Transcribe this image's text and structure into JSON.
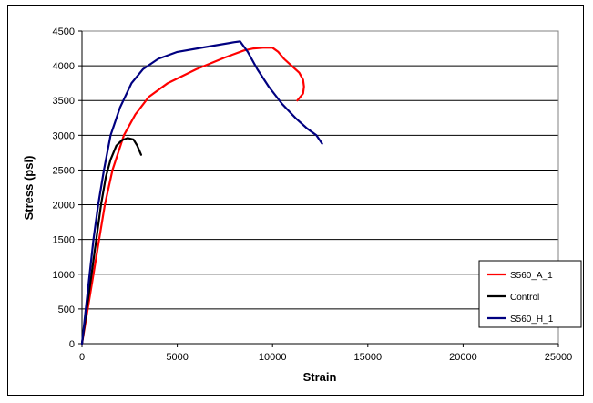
{
  "chart_data": {
    "type": "line",
    "title": "",
    "xlabel": "Strain",
    "ylabel": "Stress (psi)",
    "xlim": [
      0,
      25000
    ],
    "ylim": [
      0,
      4500
    ],
    "xticks": [
      0,
      5000,
      10000,
      15000,
      20000,
      25000
    ],
    "yticks": [
      0,
      500,
      1000,
      1500,
      2000,
      2500,
      3000,
      3500,
      4000,
      4500
    ],
    "grid": "horizontal",
    "legend_position": "right",
    "series": [
      {
        "name": "S560_A_1",
        "color": "#ff0000",
        "points": [
          [
            0,
            0
          ],
          [
            300,
            500
          ],
          [
            600,
            1000
          ],
          [
            900,
            1500
          ],
          [
            1200,
            2000
          ],
          [
            1600,
            2500
          ],
          [
            2200,
            3000
          ],
          [
            2800,
            3300
          ],
          [
            3500,
            3550
          ],
          [
            4500,
            3750
          ],
          [
            6000,
            3950
          ],
          [
            7500,
            4120
          ],
          [
            8500,
            4220
          ],
          [
            9000,
            4250
          ],
          [
            9500,
            4260
          ],
          [
            10000,
            4260
          ],
          [
            10300,
            4200
          ],
          [
            10600,
            4100
          ],
          [
            11000,
            4000
          ],
          [
            11400,
            3900
          ],
          [
            11600,
            3800
          ],
          [
            11650,
            3700
          ],
          [
            11600,
            3600
          ],
          [
            11300,
            3500
          ]
        ]
      },
      {
        "name": "Control",
        "color": "#000000",
        "points": [
          [
            0,
            0
          ],
          [
            250,
            500
          ],
          [
            500,
            1000
          ],
          [
            750,
            1500
          ],
          [
            1000,
            2000
          ],
          [
            1250,
            2400
          ],
          [
            1500,
            2650
          ],
          [
            1800,
            2850
          ],
          [
            2100,
            2930
          ],
          [
            2400,
            2960
          ],
          [
            2700,
            2940
          ],
          [
            2900,
            2850
          ],
          [
            3100,
            2720
          ]
        ]
      },
      {
        "name": "S560_H_1",
        "color": "#000080",
        "points": [
          [
            0,
            0
          ],
          [
            200,
            500
          ],
          [
            400,
            1000
          ],
          [
            600,
            1500
          ],
          [
            850,
            2000
          ],
          [
            1150,
            2500
          ],
          [
            1500,
            3000
          ],
          [
            2000,
            3400
          ],
          [
            2600,
            3750
          ],
          [
            3200,
            3950
          ],
          [
            4000,
            4100
          ],
          [
            5000,
            4200
          ],
          [
            6500,
            4270
          ],
          [
            8000,
            4340
          ],
          [
            8300,
            4350
          ],
          [
            8700,
            4200
          ],
          [
            9200,
            3950
          ],
          [
            9800,
            3700
          ],
          [
            10500,
            3450
          ],
          [
            11200,
            3250
          ],
          [
            11800,
            3100
          ],
          [
            12300,
            3000
          ],
          [
            12600,
            2880
          ]
        ]
      }
    ]
  }
}
